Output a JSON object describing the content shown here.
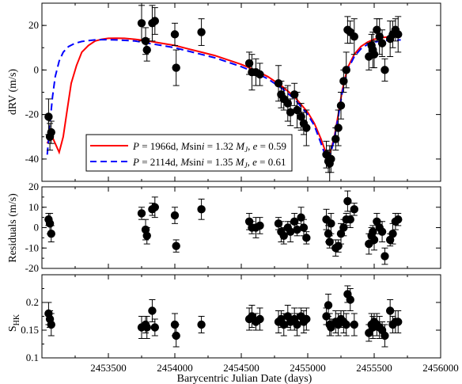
{
  "chart_data": [
    {
      "type": "scatter",
      "ylabel": "dRV (m/s)",
      "xlim": [
        2453000,
        2456000
      ],
      "ylim": [
        -50,
        30
      ],
      "y_ticks": [
        -40,
        -20,
        0,
        20
      ],
      "series": [
        {
          "name": "P = 1966d, Msini = 1.32 MJ, e = 0.59",
          "kind": "line",
          "color": "#ff0000",
          "dash": "solid",
          "x": [
            2453040,
            2453070,
            2453100,
            2453130,
            2453160,
            2453190,
            2453220,
            2453260,
            2453300,
            2453350,
            2453400,
            2453450,
            2453500,
            2453560,
            2453620,
            2453700,
            2453800,
            2453900,
            2454000,
            2454100,
            2454200,
            2454300,
            2454400,
            2454500,
            2454600,
            2454700,
            2454800,
            2454900,
            2455000,
            2455050,
            2455100,
            2455130,
            2455150,
            2455170,
            2455200,
            2455230,
            2455260,
            2455300,
            2455350,
            2455400,
            2455450,
            2455500,
            2455550,
            2455600,
            2455700
          ],
          "y": [
            -33,
            -29,
            -33,
            -37,
            -30,
            -18,
            -6,
            2,
            8,
            11,
            13,
            13.8,
            14.2,
            14.3,
            14.2,
            13.8,
            13,
            12,
            11,
            9.5,
            8,
            6.5,
            4.5,
            2.5,
            0,
            -3,
            -7,
            -12,
            -19,
            -24,
            -31,
            -36,
            -39,
            -37,
            -30,
            -20,
            -9,
            1,
            7,
            10.5,
            12.5,
            13.8,
            14.5,
            14.8,
            15
          ]
        },
        {
          "name": "P = 2114d, Msini = 1.35 MJ, e = 0.61",
          "kind": "line",
          "color": "#0000ff",
          "dash": "dashed",
          "x": [
            2453040,
            2453060,
            2453080,
            2453100,
            2453130,
            2453160,
            2453200,
            2453250,
            2453300,
            2453350,
            2453400,
            2453450,
            2453500,
            2453550,
            2453600,
            2453700,
            2453800,
            2453900,
            2454000,
            2454100,
            2454200,
            2454300,
            2454400,
            2454500,
            2454600,
            2454700,
            2454800,
            2454900,
            2455000,
            2455050,
            2455100,
            2455130,
            2455150,
            2455170,
            2455200,
            2455230,
            2455260,
            2455300,
            2455350,
            2455400,
            2455450,
            2455500,
            2455550,
            2455600,
            2455700
          ],
          "y": [
            -38,
            -24,
            -12,
            -3,
            4,
            8,
            10.5,
            12,
            12.8,
            13.2,
            13.5,
            13.6,
            13.6,
            13.5,
            13.4,
            13,
            12,
            11,
            10,
            8.5,
            7,
            5.5,
            3.5,
            1.5,
            -1,
            -4,
            -8,
            -13,
            -20,
            -25,
            -33,
            -38,
            -40,
            -38,
            -31,
            -21,
            -10,
            0,
            6,
            9.5,
            11.5,
            12.5,
            13,
            13.3,
            13.5
          ]
        },
        {
          "name": "",
          "kind": "points",
          "x": [
            2453050,
            2453060,
            2453070,
            2453750,
            2453780,
            2453790,
            2453830,
            2453850,
            2454000,
            2454010,
            2454200,
            2454560,
            2454580,
            2454610,
            2454640,
            2454780,
            2454800,
            2454820,
            2454850,
            2454870,
            2454900,
            2454920,
            2454950,
            2454970,
            2454990,
            2455140,
            2455155,
            2455165,
            2455175,
            2455210,
            2455230,
            2455250,
            2455270,
            2455290,
            2455300,
            2455320,
            2455350,
            2455460,
            2455480,
            2455490,
            2455500,
            2455520,
            2455540,
            2455560,
            2455580,
            2455620,
            2455640,
            2455660,
            2455680
          ],
          "y": [
            -21,
            -30,
            -28,
            21,
            13,
            9,
            21,
            22,
            16,
            1,
            17,
            3,
            -1,
            -1,
            -2,
            -6,
            -11,
            -13,
            -15,
            -19,
            -11,
            -18,
            -21,
            -24,
            -26,
            -38,
            -41,
            -42,
            -40,
            -31,
            -26,
            -16,
            -5,
            0,
            18,
            17,
            15,
            6,
            11,
            9,
            7,
            18,
            15,
            12,
            0,
            14,
            16,
            18,
            16
          ]
        }
      ]
    },
    {
      "type": "scatter",
      "ylabel": "Residuals (m/s)",
      "xlim": [
        2453000,
        2456000
      ],
      "ylim": [
        -20,
        20
      ],
      "y_ticks": [
        -20,
        -10,
        0,
        10,
        20
      ],
      "series": [
        {
          "name": "",
          "kind": "points",
          "x": [
            2453050,
            2453060,
            2453070,
            2453750,
            2453780,
            2453790,
            2453830,
            2453850,
            2454000,
            2454010,
            2454200,
            2454560,
            2454580,
            2454610,
            2454640,
            2454780,
            2454800,
            2454820,
            2454850,
            2454870,
            2454900,
            2454920,
            2454950,
            2454970,
            2454990,
            2455140,
            2455155,
            2455165,
            2455175,
            2455210,
            2455230,
            2455250,
            2455270,
            2455290,
            2455300,
            2455320,
            2455350,
            2455460,
            2455480,
            2455490,
            2455500,
            2455520,
            2455540,
            2455560,
            2455580,
            2455620,
            2455640,
            2455660,
            2455680
          ],
          "y": [
            4,
            2,
            -3,
            7,
            -1,
            -4,
            9,
            10,
            6,
            -9,
            9,
            3,
            0,
            0,
            1,
            2,
            -2,
            -4,
            0,
            -2,
            3,
            -1,
            5,
            0,
            -5,
            4,
            -3,
            -7,
            2,
            -10,
            -9,
            -3,
            0,
            4,
            13,
            4,
            9,
            -8,
            -4,
            -2,
            -6,
            3,
            0,
            -2,
            -14,
            -6,
            -3,
            3,
            4
          ]
        }
      ]
    },
    {
      "type": "scatter",
      "ylabel": "SHK",
      "xlabel": "Barycentric Julian Date (days)",
      "xlim": [
        2453000,
        2456000
      ],
      "x_ticks": [
        2453500,
        2454000,
        2454500,
        2455000,
        2455500,
        2456000
      ],
      "ylim": [
        0.1,
        0.25
      ],
      "y_ticks": [
        0.1,
        0.15,
        0.2
      ],
      "series": [
        {
          "name": "",
          "kind": "points",
          "x": [
            2453050,
            2453060,
            2453070,
            2453750,
            2453780,
            2453790,
            2453830,
            2453850,
            2454000,
            2454010,
            2454200,
            2454560,
            2454580,
            2454610,
            2454640,
            2454780,
            2454800,
            2454820,
            2454850,
            2454870,
            2454900,
            2454920,
            2454950,
            2454970,
            2454990,
            2455140,
            2455155,
            2455165,
            2455175,
            2455210,
            2455230,
            2455250,
            2455270,
            2455290,
            2455300,
            2455320,
            2455350,
            2455460,
            2455480,
            2455490,
            2455500,
            2455520,
            2455540,
            2455560,
            2455580,
            2455620,
            2455640,
            2455660,
            2455680
          ],
          "y": [
            0.18,
            0.17,
            0.16,
            0.155,
            0.16,
            0.155,
            0.185,
            0.155,
            0.16,
            0.14,
            0.16,
            0.17,
            0.175,
            0.165,
            0.17,
            0.165,
            0.17,
            0.16,
            0.175,
            0.165,
            0.17,
            0.16,
            0.175,
            0.165,
            0.17,
            0.175,
            0.195,
            0.16,
            0.155,
            0.165,
            0.16,
            0.17,
            0.165,
            0.16,
            0.215,
            0.205,
            0.16,
            0.145,
            0.16,
            0.155,
            0.165,
            0.16,
            0.155,
            0.15,
            0.14,
            0.185,
            0.16,
            0.165,
            0.165
          ]
        }
      ]
    }
  ],
  "x_tick_labels": [
    "2453500",
    "2454000",
    "2454500",
    "2455000",
    "2455500",
    "2456000"
  ],
  "axis_label_x": "Barycentric Julian Date (days)",
  "panel1_ylabel": "dRV (m/s)",
  "panel2_ylabel": "Residuals (m/s)",
  "panel3_ylabel_main": "S",
  "panel3_ylabel_sub": "HK",
  "legend": {
    "entries": [
      {
        "color": "#ff0000",
        "dash": "solid",
        "p": "P",
        "p_val": " = 1966d, ",
        "m": "M",
        "m_text": "sin",
        "i": "i",
        "m_val": " = 1.32 ",
        "mj": "M",
        "mj_sub": "J",
        "e": "e",
        "e_val": " = 0.59"
      },
      {
        "color": "#0000ff",
        "dash": "dashed",
        "p": "P",
        "p_val": " = 2114d, ",
        "m": "M",
        "m_text": "sin",
        "i": "i",
        "m_val": " = 1.35 ",
        "mj": "M",
        "mj_sub": "J",
        "e": "e",
        "e_val": " = 0.61"
      }
    ]
  }
}
